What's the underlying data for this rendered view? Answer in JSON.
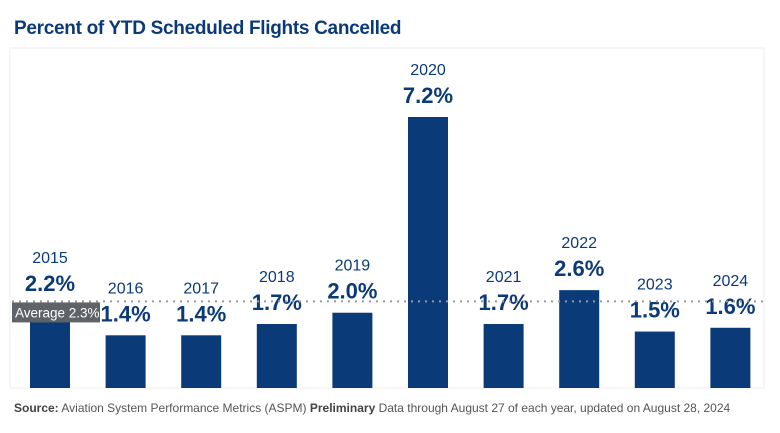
{
  "chart_data": {
    "type": "bar",
    "title": "Percent of YTD Scheduled Flights Cancelled",
    "categories": [
      "2015",
      "2016",
      "2017",
      "2018",
      "2019",
      "2020",
      "2021",
      "2022",
      "2023",
      "2024"
    ],
    "values": [
      2.2,
      1.4,
      1.4,
      1.7,
      2.0,
      7.2,
      1.7,
      2.6,
      1.5,
      1.6
    ],
    "value_labels": [
      "2.2%",
      "1.4%",
      "1.4%",
      "1.7%",
      "2.0%",
      "7.2%",
      "1.7%",
      "2.6%",
      "1.5%",
      "1.6%"
    ],
    "ylim": [
      0,
      7.2
    ],
    "average": {
      "value": 2.3,
      "label": "Average 2.3%"
    },
    "grid": false,
    "colors": {
      "bar": "#0b3a78",
      "label": "#0b3a78",
      "average_line": "#999999",
      "average_box": "#5f6368"
    }
  },
  "source": {
    "source_label": "Source:",
    "source_text": " Aviation System Performance Metrics (ASPM) ",
    "preliminary_label": "Preliminary",
    "preliminary_text": " Data through August 27 of each year, updated on August 28, 2024"
  }
}
